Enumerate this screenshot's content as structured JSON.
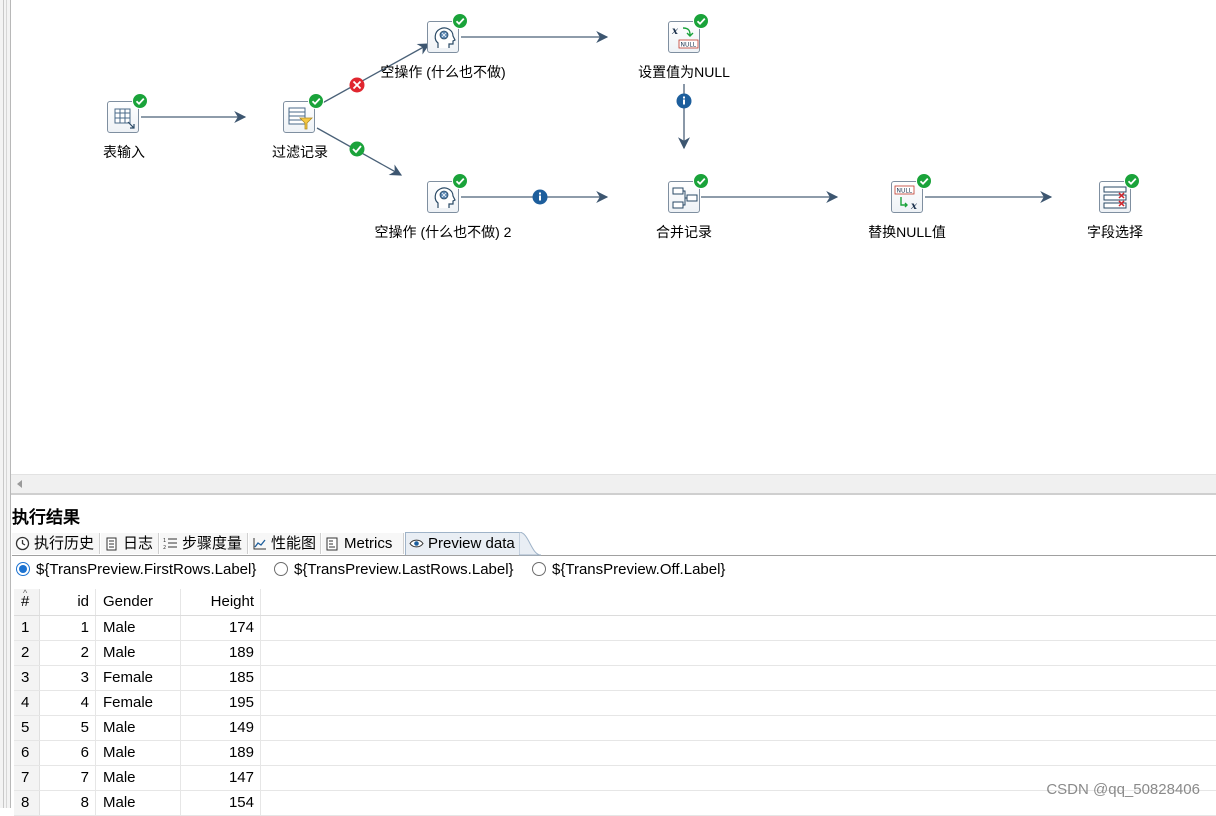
{
  "steps": [
    {
      "id": "table-input",
      "label": "表输入",
      "icon": "table-input-icon"
    },
    {
      "id": "filter-rows",
      "label": "过滤记录",
      "icon": "filter-icon"
    },
    {
      "id": "dummy-1",
      "label": "空操作 (什么也不做)",
      "icon": "dummy-head-icon"
    },
    {
      "id": "dummy-2",
      "label": "空操作 (什么也不做) 2",
      "icon": "dummy-head-icon"
    },
    {
      "id": "set-null",
      "label": "设置值为NULL",
      "icon": "set-null-icon"
    },
    {
      "id": "merge",
      "label": "合并记录",
      "icon": "merge-icon"
    },
    {
      "id": "replace-null",
      "label": "替换NULL值",
      "icon": "replace-null-icon"
    },
    {
      "id": "select-values",
      "label": "字段选择",
      "icon": "select-values-icon"
    }
  ],
  "results": {
    "title": "执行结果",
    "tabs": [
      {
        "label": "执行历史",
        "icon": "clock-icon"
      },
      {
        "label": "日志",
        "icon": "log-icon"
      },
      {
        "label": "步骤度量",
        "icon": "list-numbered-icon"
      },
      {
        "label": "性能图",
        "icon": "chart-line-icon"
      },
      {
        "label": "Metrics",
        "icon": "metrics-icon"
      },
      {
        "label": "Preview data",
        "icon": "eye-icon",
        "active": true
      }
    ],
    "radios": [
      {
        "label": "${TransPreview.FirstRows.Label}",
        "selected": true
      },
      {
        "label": "${TransPreview.LastRows.Label}",
        "selected": false
      },
      {
        "label": "${TransPreview.Off.Label}",
        "selected": false
      }
    ],
    "table": {
      "columns": [
        "#",
        "id",
        "Gender",
        "Height"
      ],
      "rows": [
        [
          "1",
          "1",
          "Male",
          "174"
        ],
        [
          "2",
          "2",
          "Male",
          "189"
        ],
        [
          "3",
          "3",
          "Female",
          "185"
        ],
        [
          "4",
          "4",
          "Female",
          "195"
        ],
        [
          "5",
          "5",
          "Male",
          "149"
        ],
        [
          "6",
          "6",
          "Male",
          "189"
        ],
        [
          "7",
          "7",
          "Male",
          "147"
        ],
        [
          "8",
          "8",
          "Male",
          "154"
        ]
      ]
    }
  },
  "watermark": "CSDN @qq_50828406"
}
